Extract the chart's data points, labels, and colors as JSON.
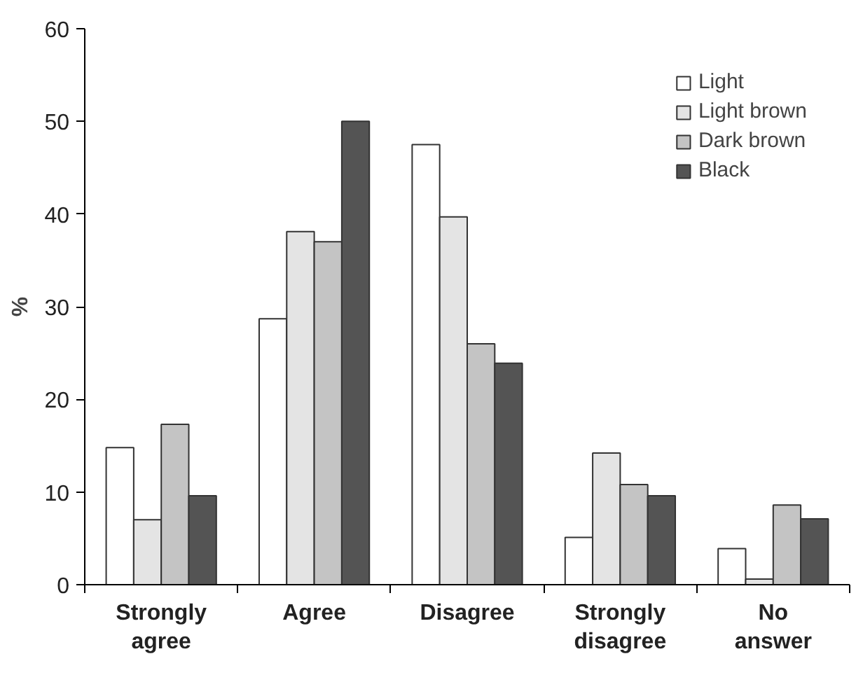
{
  "chart_data": {
    "type": "bar",
    "ylabel": "%",
    "categories": [
      "Strongly\nagree",
      "Agree",
      "Disagree",
      "Strongly\ndisagree",
      "No\nanswer"
    ],
    "series": [
      {
        "name": "Light",
        "color": "#ffffff",
        "values": [
          14.8,
          28.7,
          47.5,
          5.1,
          3.9
        ]
      },
      {
        "name": "Light brown",
        "color": "#e4e4e4",
        "values": [
          7.0,
          38.1,
          39.7,
          14.2,
          0.6
        ]
      },
      {
        "name": "Dark brown",
        "color": "#c4c4c4",
        "values": [
          17.3,
          37.0,
          26.0,
          10.8,
          8.6
        ]
      },
      {
        "name": "Black",
        "color": "#545454",
        "values": [
          9.6,
          50.0,
          23.9,
          9.6,
          7.1
        ]
      }
    ],
    "ylim": [
      0,
      60
    ],
    "yticks": [
      0,
      10,
      20,
      30,
      40,
      50,
      60
    ],
    "grid": false,
    "legend": "top right"
  }
}
